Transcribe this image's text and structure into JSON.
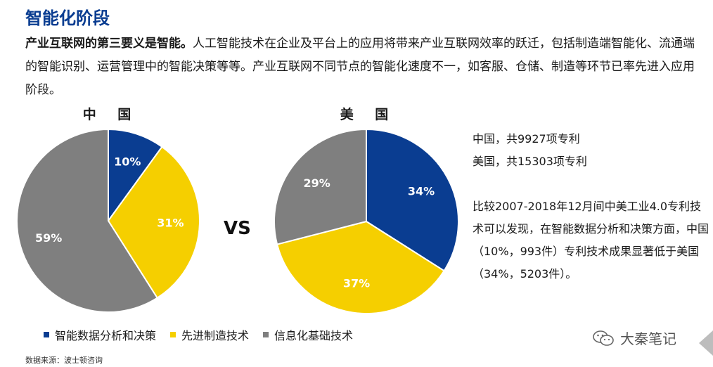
{
  "page": {
    "title": "智能化阶段",
    "intro_bold": "产业互联网的第三要义是智能。",
    "intro_text": "人工智能技术在企业及平台上的应用将带来产业互联网效率的跃迁，包括制造端智能化、流通端的智能识别、运营管理中的智能决策等等。产业互联网不同节点的智能化速度不一，如客服、仓储、制造等环节已率先进入应用阶段。",
    "vs_label": "VS",
    "side_notes": {
      "china_count": "中国，共9927项专利",
      "us_count": "美国，共15303项专利",
      "comparison": "比较2007-2018年12月间中美工业4.0专利技术可以发现，在智能数据分析和决策方面，中国（10%，993件）专利技术成果显著低于美国（34%，5203件）。"
    },
    "source": "数据来源：波士顿咨询",
    "watermark": "大秦笔记",
    "watermark_icon": "wechat-icon"
  },
  "colors": {
    "title": "#0a3d91",
    "blue": "#0a3d91",
    "yellow": "#f5cf00",
    "gray": "#7f7f7f"
  },
  "chart_data": [
    {
      "type": "pie",
      "title": "中 国",
      "categories": [
        "智能数据分析和决策",
        "先进制造技术",
        "信息化基础技术"
      ],
      "values": [
        10,
        31,
        59
      ],
      "labels": [
        "10%",
        "31%",
        "59%"
      ],
      "legend_position": "bottom"
    },
    {
      "type": "pie",
      "title": "美 国",
      "categories": [
        "智能数据分析和决策",
        "先进制造技术",
        "信息化基础技术"
      ],
      "values": [
        34,
        37,
        29
      ],
      "labels": [
        "34%",
        "37%",
        "29%"
      ],
      "legend_position": "bottom"
    }
  ],
  "legend": [
    "智能数据分析和决策",
    "先进制造技术",
    "信息化基础技术"
  ]
}
